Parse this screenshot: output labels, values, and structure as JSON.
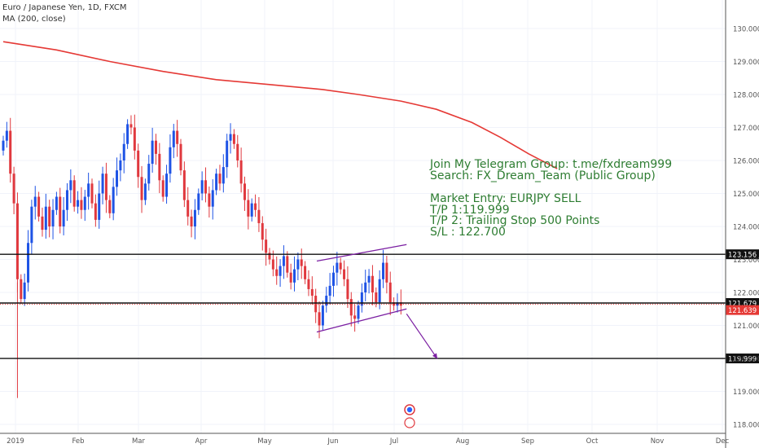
{
  "header": {
    "title": "Euro / Japanese Yen, 1D, FXCM",
    "indicator": "MA (200, close)"
  },
  "annotation": {
    "group_lines": [
      "Join My Telegram Group: t.me/fxdream999",
      "Search: FX_Dream_Team (Public Group)"
    ],
    "trade_lines": [
      "Market Entry: EURJPY SELL",
      "T/P 1:119.999",
      "T/P 2: Trailing Stop 500 Points",
      "S/L : 122.700"
    ]
  },
  "chart_data": {
    "type": "candlestick",
    "symbol": "EURJPY",
    "timeframe": "1D",
    "source": "FXCM",
    "y_range": [
      117.9,
      130.5
    ],
    "y_ticks": [
      "118.000",
      "119.000",
      "120.000",
      "121.000",
      "122.000",
      "123.000",
      "124.000",
      "125.000",
      "126.000",
      "127.000",
      "128.000",
      "129.000",
      "130.000"
    ],
    "x_months": [
      "2019",
      "Feb",
      "Mar",
      "Apr",
      "May",
      "Jun",
      "Jul",
      "Aug",
      "Sep",
      "Oct",
      "Nov",
      "Dec"
    ],
    "horizontal_levels": [
      {
        "value": 123.156,
        "label": "123.156",
        "style": "solid"
      },
      {
        "value": 121.679,
        "label": "121.679",
        "style": "solid"
      },
      {
        "value": 119.999,
        "label": "119.999",
        "style": "solid"
      }
    ],
    "last_price": {
      "value": 121.639,
      "label": "121.639"
    },
    "price_closes": [
      126.6,
      126.9,
      125.6,
      124.7,
      122.4,
      121.8,
      122.3,
      123.5,
      124.6,
      124.9,
      124.3,
      123.9,
      124.6,
      124.0,
      124.5,
      124.9,
      124.0,
      124.5,
      125.1,
      125.4,
      124.6,
      124.8,
      124.5,
      124.9,
      125.3,
      124.7,
      124.2,
      125.0,
      125.6,
      124.8,
      124.4,
      125.2,
      125.7,
      126.0,
      126.5,
      127.1,
      127.0,
      126.3,
      125.5,
      124.8,
      125.3,
      125.9,
      126.6,
      126.2,
      125.4,
      124.9,
      125.6,
      126.4,
      126.9,
      126.5,
      125.7,
      124.8,
      124.3,
      124.0,
      124.5,
      125.0,
      125.4,
      125.0,
      124.6,
      125.1,
      125.6,
      125.3,
      125.8,
      126.6,
      126.8,
      126.5,
      126.0,
      125.3,
      124.8,
      124.3,
      124.7,
      124.5,
      124.1,
      123.6,
      123.2,
      123.0,
      122.7,
      122.5,
      122.8,
      123.1,
      122.6,
      122.3,
      122.7,
      123.0,
      122.8,
      122.4,
      122.1,
      121.9,
      121.4,
      121.0,
      121.6,
      121.9,
      122.2,
      122.6,
      122.9,
      122.7,
      122.4,
      121.8,
      121.3,
      121.2,
      121.6,
      122.0,
      122.3,
      122.5,
      122.0,
      121.7,
      122.4,
      122.9,
      122.3,
      121.7,
      121.6,
      121.7,
      121.6
    ],
    "moving_average": {
      "name": "MA (200, close)",
      "points": [
        [
          0,
          129.6
        ],
        [
          15,
          129.35
        ],
        [
          30,
          129.0
        ],
        [
          45,
          128.7
        ],
        [
          60,
          128.45
        ],
        [
          75,
          128.3
        ],
        [
          90,
          128.15
        ],
        [
          100,
          128.0
        ],
        [
          112,
          127.8
        ],
        [
          122,
          127.55
        ],
        [
          132,
          127.15
        ],
        [
          140,
          126.7
        ],
        [
          148,
          126.2
        ],
        [
          156,
          125.75
        ]
      ]
    },
    "channel": {
      "upper": [
        [
          0,
          122.95
        ],
        [
          35,
          123.45
        ]
      ],
      "lower": [
        [
          0,
          120.8
        ],
        [
          35,
          121.5
        ]
      ]
    },
    "projection_arrow": {
      "from": [
        35,
        121.35
      ],
      "to": [
        47,
        119.99
      ]
    },
    "annotation_text": "Market Entry: EURJPY SELL"
  }
}
